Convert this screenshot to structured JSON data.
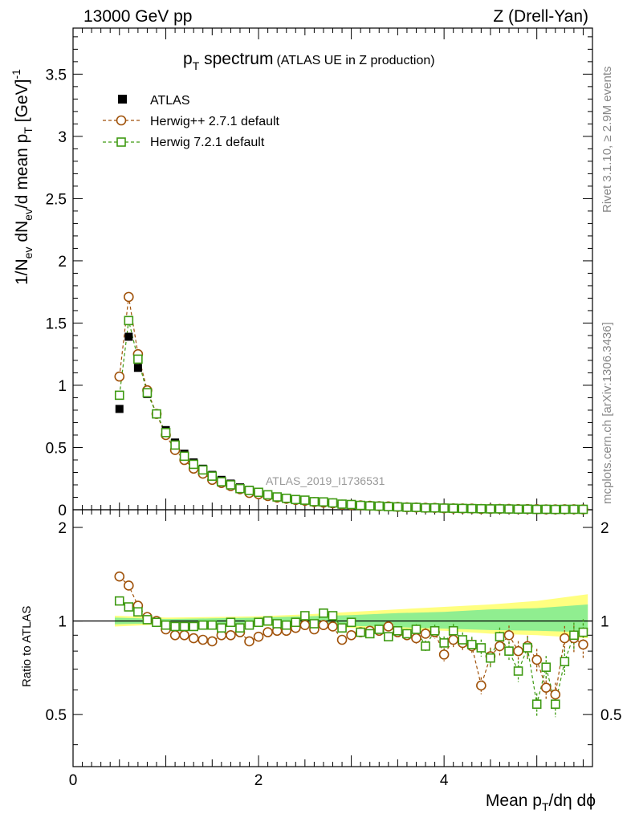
{
  "header": {
    "left": "13000 GeV pp",
    "right": "Z (Drell-Yan)"
  },
  "side": {
    "rivet": "Rivet 3.1.10, ≥ 2.9M events",
    "mcplots": "mcplots.cern.ch [arXiv:1306.3436]"
  },
  "colors": {
    "atlas": "#000000",
    "herwigpp": "#a0520a",
    "herwig7": "#3e9a12",
    "band_outer": "#ffff80",
    "band_inner": "#90ee90"
  },
  "chart_data": {
    "type": "scatter",
    "title_main": "p",
    "title_sub": "T",
    "title_rest": " spectrum",
    "title_note": "(ATLAS UE in Z production)",
    "watermark": "ATLAS_2019_I1736531",
    "xlabel": "Mean p",
    "xlabel_sub": "T",
    "xlabel_rest": "/dη dϕ",
    "ylabel": "1/N_ev dN_ev/d mean p_T [GeV]^-1",
    "ratio_ylabel": "Ratio to ATLAS",
    "xlim": [
      0,
      5.6
    ],
    "ylim": [
      0,
      3.87
    ],
    "ratio_ylim": [
      0.34,
      2.28
    ],
    "x_ticks": [
      "0",
      "2",
      "4"
    ],
    "y_ticks": [
      "0",
      "0.5",
      "1",
      "1.5",
      "2",
      "2.5",
      "3",
      "3.5"
    ],
    "ratio_ticks": [
      "0.5",
      "1",
      "2"
    ],
    "legend": [
      "ATLAS",
      "Herwig++ 2.7.1 default",
      "Herwig 7.2.1 default"
    ],
    "x": [
      0.5,
      0.6,
      0.7,
      0.8,
      0.9,
      1.0,
      1.1,
      1.2,
      1.3,
      1.4,
      1.5,
      1.6,
      1.7,
      1.8,
      1.9,
      2.0,
      2.1,
      2.2,
      2.3,
      2.4,
      2.5,
      2.6,
      2.7,
      2.8,
      2.9,
      3.0,
      3.1,
      3.2,
      3.3,
      3.4,
      3.5,
      3.6,
      3.7,
      3.8,
      3.9,
      4.0,
      4.1,
      4.2,
      4.3,
      4.4,
      4.5,
      4.6,
      4.7,
      4.8,
      4.9,
      5.0,
      5.1,
      5.2,
      5.3,
      5.4,
      5.5
    ],
    "series": [
      {
        "name": "ATLAS",
        "values": [
          0.81,
          1.39,
          1.14,
          0.93,
          0.77,
          0.64,
          0.54,
          0.45,
          0.38,
          0.33,
          0.28,
          0.24,
          0.21,
          0.18,
          0.16,
          0.14,
          0.12,
          0.105,
          0.095,
          0.083,
          0.074,
          0.066,
          0.059,
          0.053,
          0.047,
          0.042,
          0.038,
          0.034,
          0.031,
          0.028,
          0.025,
          0.022,
          0.02,
          0.018,
          0.016,
          0.015,
          0.013,
          0.012,
          0.011,
          0.01,
          0.009,
          0.008,
          0.0075,
          0.007,
          0.0063,
          0.0057,
          0.0052,
          0.0048,
          0.0044,
          0.004,
          0.0036
        ],
        "ratio": [
          1,
          1,
          1,
          1,
          1,
          1,
          1,
          1,
          1,
          1,
          1,
          1,
          1,
          1,
          1,
          1,
          1,
          1,
          1,
          1,
          1,
          1,
          1,
          1,
          1,
          1,
          1,
          1,
          1,
          1,
          1,
          1,
          1,
          1,
          1,
          1,
          1,
          1,
          1,
          1,
          1,
          1,
          1,
          1,
          1,
          1,
          1,
          1,
          1,
          1,
          1
        ]
      },
      {
        "name": "Herwig++ 2.7.1 default",
        "values": [
          1.07,
          1.71,
          1.25,
          0.96,
          0.77,
          0.6,
          0.48,
          0.4,
          0.33,
          0.29,
          0.24,
          0.215,
          0.19,
          0.165,
          0.135,
          0.125,
          0.11,
          0.098,
          0.088,
          0.079,
          0.072,
          0.062,
          0.057,
          0.051,
          0.041,
          0.038,
          0.035,
          0.032,
          0.029,
          0.027,
          0.023,
          0.02,
          0.018,
          0.016,
          0.015,
          0.012,
          0.011,
          0.01,
          0.009,
          0.0062,
          0.0069,
          0.0066,
          0.0068,
          0.0056,
          0.0052,
          0.0043,
          0.0032,
          0.0028,
          0.0039,
          0.0035,
          0.003
        ],
        "ratio": [
          1.39,
          1.3,
          1.12,
          1.03,
          1.0,
          0.94,
          0.9,
          0.9,
          0.88,
          0.87,
          0.86,
          0.9,
          0.9,
          0.92,
          0.86,
          0.89,
          0.92,
          0.93,
          0.93,
          0.95,
          0.97,
          0.94,
          0.97,
          0.96,
          0.87,
          0.9,
          0.92,
          0.93,
          0.93,
          0.96,
          0.92,
          0.9,
          0.88,
          0.91,
          0.92,
          0.78,
          0.87,
          0.85,
          0.83,
          0.62,
          0.77,
          0.83,
          0.9,
          0.8,
          0.83,
          0.75,
          0.61,
          0.58,
          0.88,
          0.88,
          0.84
        ]
      },
      {
        "name": "Herwig 7.2.1 default",
        "values": [
          0.92,
          1.52,
          1.21,
          0.94,
          0.77,
          0.62,
          0.52,
          0.43,
          0.365,
          0.32,
          0.27,
          0.225,
          0.2,
          0.17,
          0.155,
          0.14,
          0.12,
          0.103,
          0.092,
          0.082,
          0.077,
          0.065,
          0.063,
          0.055,
          0.045,
          0.042,
          0.035,
          0.031,
          0.029,
          0.025,
          0.023,
          0.02,
          0.019,
          0.015,
          0.015,
          0.013,
          0.012,
          0.0104,
          0.0092,
          0.0081,
          0.0069,
          0.0071,
          0.006,
          0.0048,
          0.0052,
          0.0031,
          0.0037,
          0.0026,
          0.0033,
          0.0036,
          0.0033
        ],
        "ratio": [
          1.16,
          1.11,
          1.07,
          1.01,
          0.99,
          0.97,
          0.96,
          0.96,
          0.96,
          0.97,
          0.97,
          0.95,
          0.99,
          0.95,
          0.97,
          0.99,
          1.0,
          0.98,
          0.97,
          0.99,
          1.04,
          0.98,
          1.06,
          1.04,
          0.95,
          0.99,
          0.92,
          0.91,
          0.94,
          0.89,
          0.93,
          0.91,
          0.94,
          0.83,
          0.93,
          0.85,
          0.93,
          0.87,
          0.84,
          0.82,
          0.76,
          0.89,
          0.8,
          0.69,
          0.82,
          0.54,
          0.71,
          0.54,
          0.74,
          0.9,
          0.92
        ]
      }
    ],
    "ratio_band": {
      "x": [
        0.45,
        1.0,
        1.5,
        2.0,
        2.5,
        3.0,
        3.5,
        4.0,
        4.5,
        5.0,
        5.55
      ],
      "outer_low": [
        0.96,
        0.975,
        0.97,
        0.965,
        0.96,
        0.95,
        0.94,
        0.93,
        0.91,
        0.9,
        0.88
      ],
      "outer_high": [
        1.04,
        1.025,
        1.03,
        1.035,
        1.05,
        1.07,
        1.09,
        1.11,
        1.13,
        1.16,
        1.22
      ],
      "inner_low": [
        0.975,
        0.985,
        0.98,
        0.978,
        0.975,
        0.965,
        0.955,
        0.945,
        0.935,
        0.93,
        0.92
      ],
      "inner_high": [
        1.025,
        1.015,
        1.02,
        1.025,
        1.035,
        1.045,
        1.06,
        1.07,
        1.09,
        1.1,
        1.13
      ]
    }
  }
}
